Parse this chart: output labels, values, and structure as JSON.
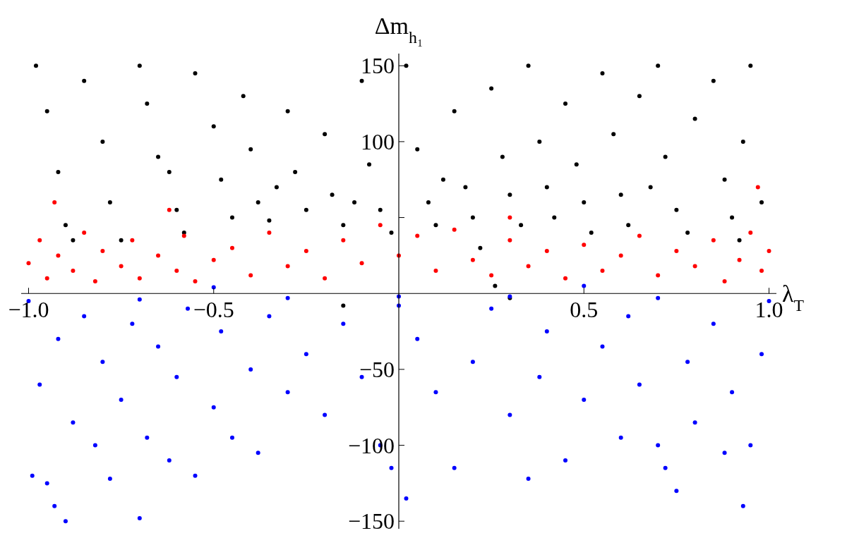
{
  "chart_data": {
    "type": "scatter",
    "xlabel": "λ$_{T}$",
    "ylabel": "Δm$_{h₁}$",
    "xlim": [
      -1.02,
      1.02
    ],
    "ylim": [
      -155,
      158
    ],
    "xticks": [
      {
        "value": -1,
        "label": "−1.0"
      },
      {
        "value": -0.5,
        "label": "−0.5"
      },
      {
        "value": 0.5,
        "label": "0.5"
      },
      {
        "value": 1,
        "label": "1.0"
      }
    ],
    "yticks": [
      {
        "value": -150,
        "label": "−150"
      },
      {
        "value": -100,
        "label": "−100"
      },
      {
        "value": -50,
        "label": "−50"
      },
      {
        "value": 50,
        "label": null
      },
      {
        "value": 100,
        "label": "100"
      },
      {
        "value": 150,
        "label": "150"
      }
    ],
    "marker": "circle",
    "series": [
      {
        "color": "#000000",
        "x": [
          -0.98,
          -0.95,
          -0.92,
          -0.9,
          -0.85,
          -0.8,
          -0.78,
          -0.75,
          -0.7,
          -0.68,
          -0.65,
          -0.6,
          -0.58,
          -0.55,
          -0.5,
          -0.48,
          -0.45,
          -0.42,
          -0.4,
          -0.38,
          -0.35,
          -0.3,
          -0.28,
          -0.25,
          -0.2,
          -0.18,
          -0.15,
          -0.1,
          -0.08,
          -0.05,
          -0.02,
          0.02,
          0.05,
          0.08,
          0.1,
          0.15,
          0.18,
          0.2,
          0.22,
          0.25,
          0.28,
          0.3,
          0.33,
          0.35,
          0.38,
          0.4,
          0.42,
          0.45,
          0.48,
          0.5,
          0.52,
          0.55,
          0.58,
          0.6,
          0.62,
          0.65,
          0.7,
          0.72,
          0.75,
          0.78,
          0.8,
          0.85,
          0.88,
          0.9,
          0.93,
          0.95,
          0.98,
          -0.62,
          -0.12,
          0.12,
          -0.33,
          0.68,
          -0.88,
          0.92,
          0.26,
          0.3,
          -0.15
        ],
        "values": [
          150,
          120,
          80,
          45,
          140,
          100,
          60,
          35,
          150,
          125,
          90,
          55,
          40,
          145,
          110,
          75,
          50,
          130,
          95,
          60,
          48,
          120,
          80,
          55,
          105,
          65,
          45,
          140,
          85,
          55,
          40,
          150,
          95,
          60,
          45,
          120,
          70,
          50,
          30,
          135,
          90,
          65,
          45,
          150,
          100,
          70,
          50,
          125,
          85,
          60,
          40,
          145,
          105,
          65,
          45,
          130,
          150,
          90,
          55,
          40,
          115,
          140,
          75,
          50,
          100,
          150,
          60,
          80,
          60,
          75,
          70,
          70,
          35,
          35,
          5,
          -3,
          -8
        ]
      },
      {
        "color": "#ff0000",
        "x": [
          -1.0,
          -0.97,
          -0.95,
          -0.92,
          -0.88,
          -0.85,
          -0.82,
          -0.8,
          -0.75,
          -0.72,
          -0.7,
          -0.65,
          -0.6,
          -0.58,
          -0.55,
          -0.5,
          -0.45,
          -0.4,
          -0.35,
          -0.3,
          -0.25,
          -0.2,
          -0.15,
          -0.1,
          -0.05,
          0,
          0.05,
          0.1,
          0.15,
          0.2,
          0.25,
          0.3,
          0.35,
          0.4,
          0.45,
          0.5,
          0.55,
          0.6,
          0.65,
          0.7,
          0.75,
          0.8,
          0.85,
          0.88,
          0.92,
          0.95,
          0.98,
          1.0,
          -0.93,
          0.97,
          -0.62,
          0.3
        ],
        "values": [
          20,
          35,
          10,
          25,
          15,
          40,
          8,
          28,
          18,
          35,
          10,
          25,
          15,
          38,
          8,
          22,
          30,
          12,
          40,
          18,
          28,
          10,
          35,
          20,
          45,
          25,
          38,
          15,
          42,
          22,
          12,
          35,
          18,
          28,
          10,
          32,
          15,
          25,
          38,
          12,
          28,
          18,
          35,
          8,
          22,
          40,
          15,
          28,
          60,
          70,
          55,
          50
        ]
      },
      {
        "color": "#0000ff",
        "x": [
          -1.0,
          -0.99,
          -0.97,
          -0.95,
          -0.93,
          -0.9,
          -0.92,
          -0.88,
          -0.85,
          -0.82,
          -0.8,
          -0.78,
          -0.75,
          -0.72,
          -0.7,
          -0.68,
          -0.65,
          -0.62,
          -0.6,
          -0.57,
          -0.55,
          -0.5,
          -0.48,
          -0.45,
          -0.4,
          -0.38,
          -0.35,
          -0.3,
          -0.25,
          -0.2,
          -0.15,
          -0.1,
          -0.05,
          -0.02,
          0,
          0.02,
          0.05,
          0.1,
          0.15,
          0.2,
          0.25,
          0.3,
          0.35,
          0.38,
          0.4,
          0.45,
          0.5,
          0.55,
          0.6,
          0.62,
          0.65,
          0.7,
          0.72,
          0.75,
          0.78,
          0.8,
          0.85,
          0.88,
          0.9,
          0.93,
          0.95,
          0.98,
          1.0,
          -0.3,
          0.3,
          -0.7,
          0.7,
          0,
          0.5,
          -0.5
        ],
        "values": [
          -5,
          -120,
          -60,
          -125,
          -140,
          -150,
          -30,
          -85,
          -15,
          -100,
          -45,
          -122,
          -70,
          -20,
          -148,
          -95,
          -35,
          -110,
          -55,
          -10,
          -120,
          -75,
          -25,
          -95,
          -50,
          -105,
          -15,
          -65,
          -40,
          -80,
          -20,
          -55,
          -100,
          -115,
          -8,
          -135,
          -30,
          -65,
          -115,
          -45,
          -10,
          -80,
          -122,
          -55,
          -25,
          -110,
          -70,
          -35,
          -95,
          -15,
          -60,
          -100,
          -115,
          -130,
          -45,
          -85,
          -20,
          -105,
          -65,
          -140,
          -100,
          -40,
          -5,
          -3,
          -2,
          -4,
          -3,
          -2,
          5,
          4
        ]
      }
    ]
  }
}
